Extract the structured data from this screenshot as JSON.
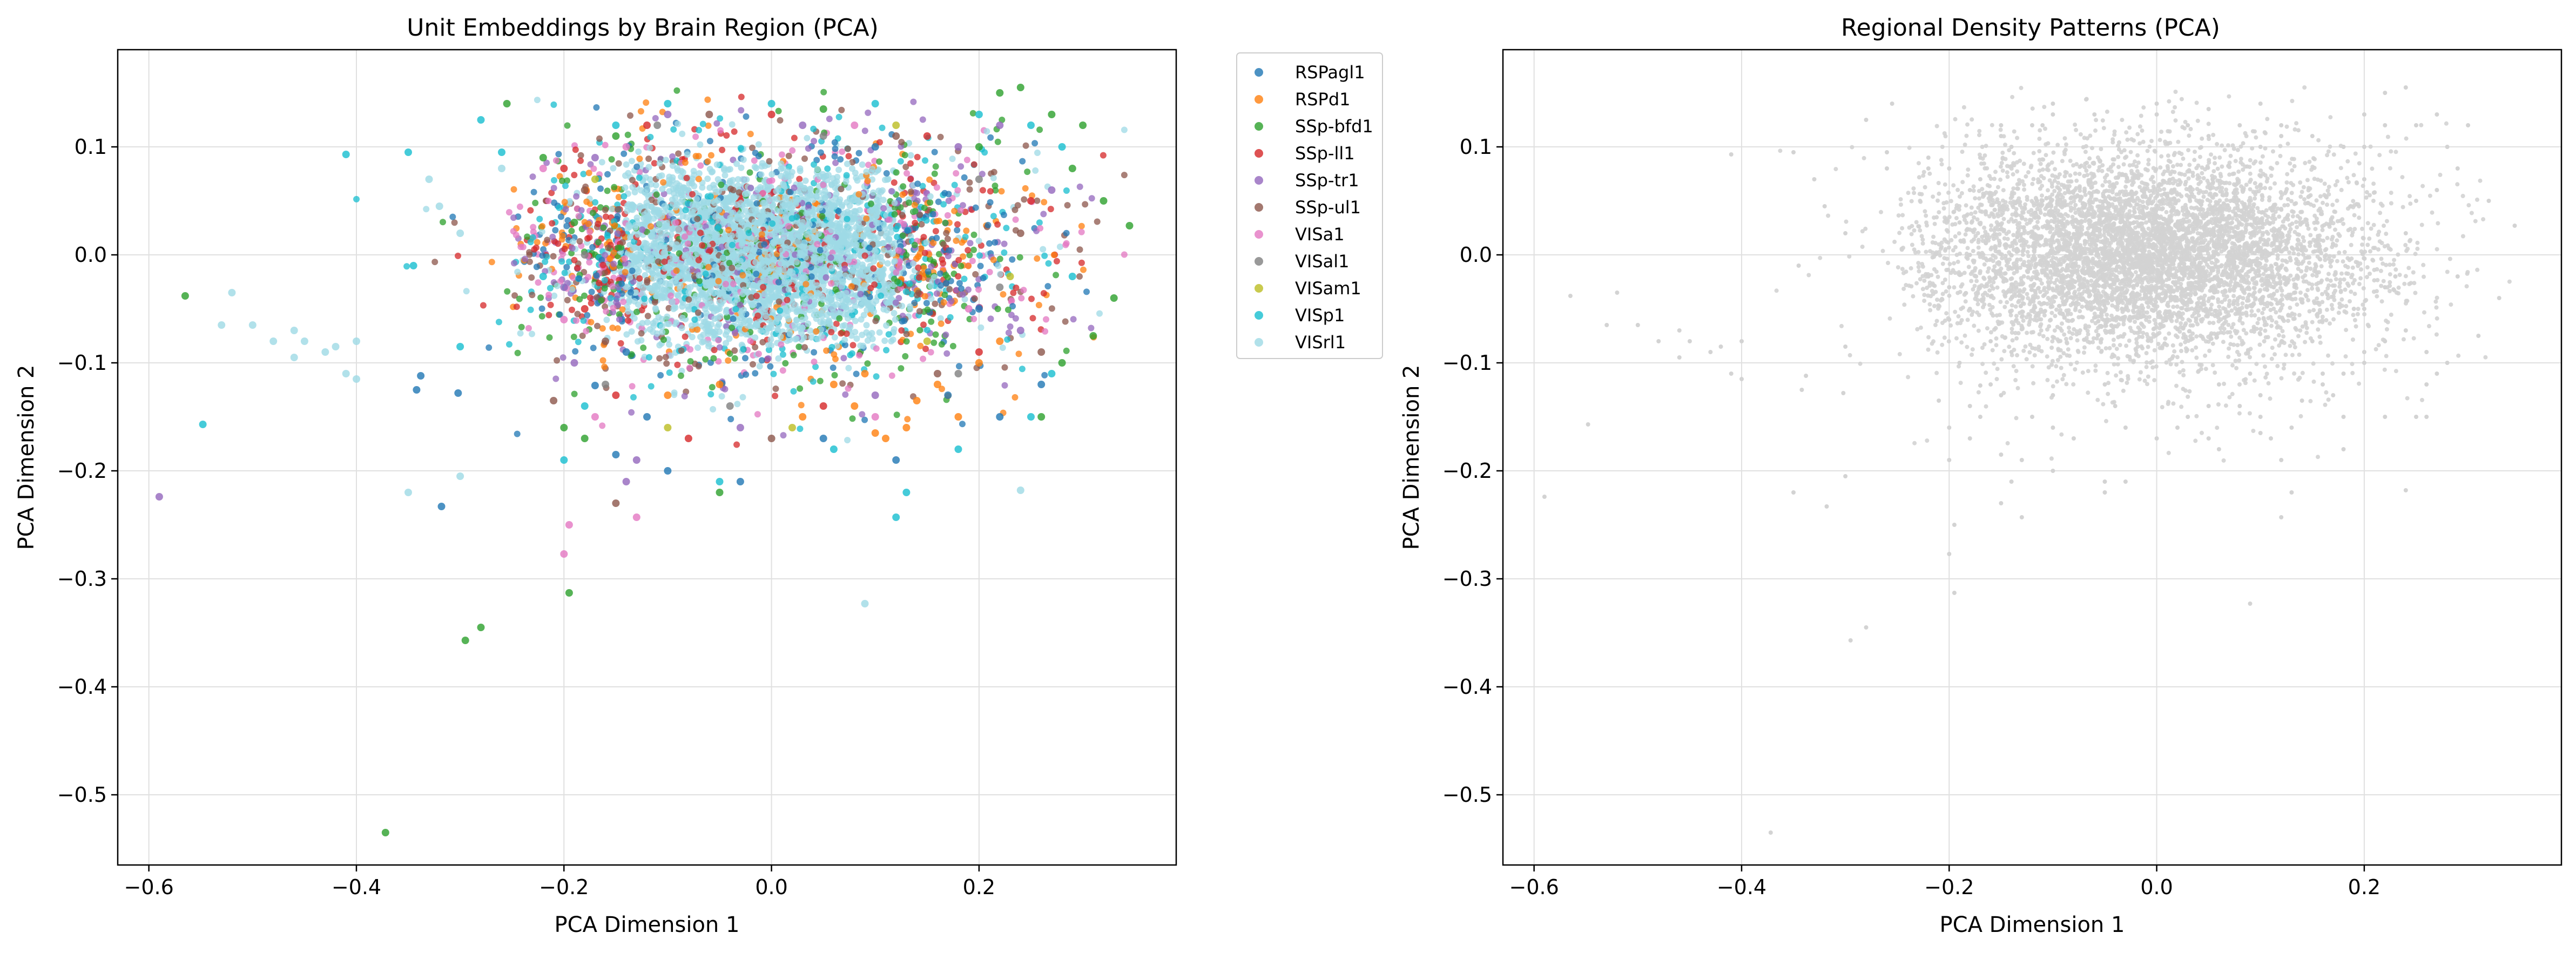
{
  "chart_data": [
    {
      "type": "scatter",
      "title": "Unit Embeddings by Brain Region (PCA)",
      "xlabel": "PCA Dimension 1",
      "ylabel": "PCA Dimension 2",
      "xlim": [
        -0.63,
        0.39
      ],
      "ylim": [
        -0.565,
        0.19
      ],
      "xticks": [
        -0.6,
        -0.4,
        -0.2,
        0.0,
        0.2
      ],
      "xtick_labels": [
        "−0.6",
        "−0.4",
        "−0.2",
        "0.0",
        "0.2"
      ],
      "yticks": [
        -0.5,
        -0.4,
        -0.3,
        -0.2,
        -0.1,
        0.0,
        0.1
      ],
      "ytick_labels": [
        "−0.5",
        "−0.4",
        "−0.3",
        "−0.2",
        "−0.1",
        "0.0",
        "0.1"
      ],
      "grid": true,
      "legend_position": "outside-right",
      "series": [
        {
          "name": "RSPagl1",
          "color": "#1f77b4",
          "points": [
            [
              -0.338,
              -0.112
            ],
            [
              -0.342,
              -0.125
            ],
            [
              -0.318,
              -0.233
            ],
            [
              -0.302,
              -0.128
            ],
            [
              -0.17,
              -0.121
            ],
            [
              -0.15,
              -0.185
            ],
            [
              -0.1,
              -0.2
            ],
            [
              -0.03,
              -0.21
            ],
            [
              0.05,
              -0.17
            ],
            [
              0.12,
              -0.19
            ],
            [
              0.17,
              -0.13
            ],
            [
              0.22,
              -0.15
            ],
            [
              0.26,
              -0.12
            ],
            [
              -0.14,
              -0.09
            ],
            [
              0.1,
              0.1
            ],
            [
              0.2,
              -0.05
            ],
            [
              -0.12,
              -0.15
            ]
          ]
        },
        {
          "name": "RSPd1",
          "color": "#ff7f0e",
          "points": [
            [
              0.1,
              -0.165
            ],
            [
              0.11,
              -0.17
            ],
            [
              0.08,
              -0.14
            ],
            [
              0.13,
              -0.16
            ],
            [
              0.16,
              -0.12
            ],
            [
              0.2,
              -0.1
            ],
            [
              0.06,
              -0.12
            ],
            [
              0.14,
              -0.135
            ],
            [
              0.18,
              -0.15
            ],
            [
              0.09,
              -0.11
            ],
            [
              -0.05,
              -0.12
            ],
            [
              0.22,
              -0.08
            ],
            [
              0.03,
              -0.15
            ],
            [
              -0.1,
              -0.13
            ]
          ]
        },
        {
          "name": "SSp-bfd1",
          "color": "#2ca02c",
          "points": [
            [
              -0.565,
              -0.038
            ],
            [
              -0.372,
              -0.535
            ],
            [
              -0.295,
              -0.357
            ],
            [
              -0.28,
              -0.345
            ],
            [
              -0.195,
              -0.313
            ],
            [
              -0.255,
              0.14
            ],
            [
              -0.22,
              0.09
            ],
            [
              -0.2,
              -0.16
            ],
            [
              -0.18,
              -0.17
            ],
            [
              0.24,
              0.155
            ],
            [
              0.3,
              0.12
            ],
            [
              0.345,
              0.027
            ],
            [
              0.33,
              -0.04
            ],
            [
              0.31,
              -0.075
            ],
            [
              0.28,
              -0.1
            ],
            [
              0.22,
              0.15
            ],
            [
              0.27,
              0.13
            ],
            [
              -0.15,
              0.11
            ],
            [
              -0.05,
              -0.22
            ],
            [
              0.05,
              0.135
            ],
            [
              0.26,
              -0.15
            ],
            [
              0.32,
              0.05
            ],
            [
              -0.19,
              0.03
            ],
            [
              0.2,
              0.1
            ],
            [
              0.29,
              0.08
            ]
          ]
        },
        {
          "name": "SSp-ll1",
          "color": "#d62728",
          "points": [
            [
              -0.15,
              -0.13
            ],
            [
              -0.18,
              -0.05
            ],
            [
              -0.2,
              0.08
            ],
            [
              -0.12,
              0.12
            ],
            [
              0.0,
              0.13
            ],
            [
              0.15,
              0.11
            ],
            [
              0.25,
              0.05
            ],
            [
              0.2,
              -0.09
            ],
            [
              -0.08,
              -0.17
            ],
            [
              0.05,
              -0.14
            ]
          ]
        },
        {
          "name": "SSp-tr1",
          "color": "#9467bd",
          "points": [
            [
              -0.59,
              -0.224
            ],
            [
              -0.14,
              -0.21
            ],
            [
              -0.19,
              -0.1
            ],
            [
              -0.17,
              0.09
            ],
            [
              -0.1,
              0.13
            ],
            [
              0.03,
              0.12
            ],
            [
              0.18,
              0.1
            ],
            [
              0.27,
              0.06
            ],
            [
              0.24,
              -0.07
            ],
            [
              0.1,
              -0.13
            ],
            [
              -0.03,
              -0.16
            ],
            [
              -0.2,
              -0.03
            ],
            [
              0.22,
              0.12
            ],
            [
              -0.13,
              -0.19
            ]
          ]
        },
        {
          "name": "SSp-ul1",
          "color": "#8c564b",
          "points": [
            [
              -0.21,
              -0.135
            ],
            [
              -0.15,
              -0.23
            ],
            [
              -0.18,
              0.06
            ],
            [
              -0.16,
              -0.08
            ],
            [
              0.0,
              -0.17
            ],
            [
              0.16,
              -0.11
            ],
            [
              0.24,
              0.02
            ],
            [
              0.12,
              0.11
            ],
            [
              -0.06,
              0.13
            ],
            [
              0.26,
              -0.09
            ]
          ]
        },
        {
          "name": "VISa1",
          "color": "#e377c2",
          "points": [
            [
              -0.2,
              -0.277
            ],
            [
              -0.195,
              -0.25
            ],
            [
              -0.17,
              -0.15
            ],
            [
              -0.13,
              -0.243
            ],
            [
              -0.22,
              0.08
            ],
            [
              -0.14,
              0.1
            ],
            [
              0.08,
              0.12
            ],
            [
              0.19,
              -0.05
            ],
            [
              -0.2,
              -0.06
            ],
            [
              0.1,
              -0.15
            ]
          ]
        },
        {
          "name": "VISal1",
          "color": "#7f7f7f",
          "points": [
            [
              -0.16,
              -0.12
            ],
            [
              -0.11,
              0.12
            ],
            [
              0.05,
              0.11
            ],
            [
              0.2,
              0.07
            ],
            [
              0.18,
              -0.11
            ],
            [
              -0.04,
              -0.14
            ],
            [
              -0.18,
              0.0
            ],
            [
              0.22,
              -0.03
            ]
          ]
        },
        {
          "name": "VISam1",
          "color": "#bcbd22",
          "points": [
            [
              -0.1,
              -0.16
            ],
            [
              0.12,
              0.12
            ],
            [
              0.23,
              -0.02
            ],
            [
              -0.17,
              0.07
            ],
            [
              0.02,
              -0.16
            ],
            [
              0.15,
              -0.08
            ]
          ]
        },
        {
          "name": "VISp1",
          "color": "#17becf",
          "points": [
            [
              -0.41,
              0.093
            ],
            [
              -0.35,
              0.095
            ],
            [
              -0.345,
              -0.01
            ],
            [
              -0.548,
              -0.157
            ],
            [
              -0.3,
              -0.085
            ],
            [
              -0.26,
              0.095
            ],
            [
              -0.28,
              0.125
            ],
            [
              -0.2,
              -0.19
            ],
            [
              -0.05,
              -0.21
            ],
            [
              0.12,
              -0.243
            ],
            [
              0.13,
              -0.22
            ],
            [
              0.18,
              -0.18
            ],
            [
              0.25,
              -0.15
            ],
            [
              0.28,
              0.1
            ],
            [
              0.29,
              -0.02
            ],
            [
              0.25,
              0.12
            ],
            [
              -0.15,
              0.12
            ],
            [
              0.1,
              0.14
            ],
            [
              0.0,
              0.14
            ],
            [
              -0.1,
              0.14
            ],
            [
              -0.22,
              -0.02
            ],
            [
              0.27,
              -0.11
            ],
            [
              0.2,
              0.13
            ],
            [
              -0.18,
              -0.14
            ],
            [
              0.06,
              -0.18
            ]
          ]
        },
        {
          "name": "VISrl1",
          "color": "#9edae5",
          "points": [
            [
              -0.52,
              -0.035
            ],
            [
              -0.5,
              -0.065
            ],
            [
              -0.53,
              -0.065
            ],
            [
              -0.46,
              -0.07
            ],
            [
              -0.46,
              -0.095
            ],
            [
              -0.45,
              -0.08
            ],
            [
              -0.43,
              -0.09
            ],
            [
              -0.42,
              -0.085
            ],
            [
              -0.41,
              -0.11
            ],
            [
              -0.4,
              -0.115
            ],
            [
              -0.35,
              -0.22
            ],
            [
              -0.3,
              -0.205
            ],
            [
              -0.33,
              0.07
            ],
            [
              -0.32,
              0.045
            ],
            [
              -0.26,
              0.08
            ],
            [
              0.09,
              -0.323
            ],
            [
              0.24,
              -0.218
            ],
            [
              -0.4,
              -0.08
            ],
            [
              -0.48,
              -0.08
            ],
            [
              -0.3,
              0.02
            ]
          ]
        }
      ],
      "cloud": {
        "center": [
          -0.01,
          0.0
        ],
        "std": [
          0.095,
          0.042
        ],
        "tail_std": [
          0.14,
          0.06
        ],
        "colors": [
          "#9edae5",
          "#17becf",
          "#2ca02c",
          "#9467bd",
          "#1f77b4",
          "#8c564b",
          "#ff7f0e",
          "#e377c2",
          "#d62728"
        ]
      }
    },
    {
      "type": "scatter",
      "title": "Regional Density Patterns (PCA)",
      "xlabel": "PCA Dimension 1",
      "ylabel": "PCA Dimension 2",
      "xlim": [
        -0.63,
        0.39
      ],
      "ylim": [
        -0.565,
        0.19
      ],
      "xticks": [
        -0.6,
        -0.4,
        -0.2,
        0.0,
        0.2
      ],
      "xtick_labels": [
        "−0.6",
        "−0.4",
        "−0.2",
        "0.0",
        "0.2"
      ],
      "yticks": [
        -0.5,
        -0.4,
        -0.3,
        -0.2,
        -0.1,
        0.0,
        0.1
      ],
      "ytick_labels": [
        "−0.5",
        "−0.4",
        "−0.3",
        "−0.2",
        "−0.1",
        "0.0",
        "0.1"
      ],
      "grid": true,
      "point_color": "#d3d3d3",
      "cloud": {
        "center": [
          -0.01,
          0.0
        ],
        "std": [
          0.1,
          0.045
        ],
        "tail_std": [
          0.14,
          0.06
        ]
      }
    }
  ]
}
